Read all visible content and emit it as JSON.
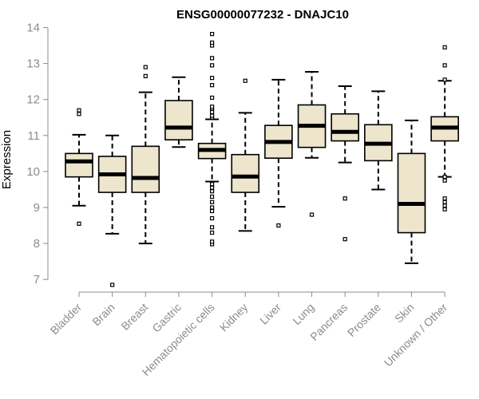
{
  "chart_data": {
    "type": "boxplot",
    "title": "ENSG00000077232 - DNAJC10",
    "xlabel": "",
    "ylabel": "Expression",
    "ylim": [
      6.8,
      14.1
    ],
    "yticks": [
      7,
      8,
      9,
      10,
      11,
      12,
      13,
      14
    ],
    "grid": false,
    "colors": {
      "box_fill": "#ede5cc",
      "box_stroke": "#000000",
      "axis": "#8c8c8c",
      "tick_text": "#8c8c8c",
      "title": "#000000"
    },
    "categories": [
      "Bladder",
      "Brain",
      "Breast",
      "Gastric",
      "Hematopoietic cells",
      "Kidney",
      "Liver",
      "Lung",
      "Pancreas",
      "Prostate",
      "Skin",
      "Unknown / Other"
    ],
    "boxes": [
      {
        "category": "Bladder",
        "whisker_low": 9.05,
        "q1": 9.85,
        "median": 10.28,
        "q3": 10.5,
        "whisker_high": 11.02,
        "outliers": [
          8.55,
          11.6,
          11.7
        ]
      },
      {
        "category": "Brain",
        "whisker_low": 8.27,
        "q1": 9.42,
        "median": 9.92,
        "q3": 10.42,
        "whisker_high": 11.0,
        "outliers": [
          6.85
        ]
      },
      {
        "category": "Breast",
        "whisker_low": 8.0,
        "q1": 9.42,
        "median": 9.82,
        "q3": 10.7,
        "whisker_high": 12.2,
        "outliers": [
          12.65,
          12.9
        ]
      },
      {
        "category": "Gastric",
        "whisker_low": 10.68,
        "q1": 10.88,
        "median": 11.22,
        "q3": 11.97,
        "whisker_high": 12.62,
        "outliers": []
      },
      {
        "category": "Hematopoietic cells",
        "whisker_low": 9.72,
        "q1": 10.36,
        "median": 10.6,
        "q3": 10.78,
        "whisker_high": 11.45,
        "outliers": [
          7.98,
          8.05,
          8.3,
          8.45,
          8.7,
          8.9,
          9.0,
          9.15,
          9.3,
          9.45,
          9.55,
          9.65,
          11.5,
          11.55,
          11.65,
          11.75,
          11.8,
          12.05,
          12.4,
          12.6,
          12.95,
          13.15,
          13.5,
          13.58,
          13.82
        ]
      },
      {
        "category": "Kidney",
        "whisker_low": 8.35,
        "q1": 9.42,
        "median": 9.86,
        "q3": 10.47,
        "whisker_high": 11.63,
        "outliers": [
          12.52
        ]
      },
      {
        "category": "Liver",
        "whisker_low": 9.02,
        "q1": 10.37,
        "median": 10.82,
        "q3": 11.28,
        "whisker_high": 12.55,
        "outliers": [
          8.5
        ]
      },
      {
        "category": "Lung",
        "whisker_low": 10.38,
        "q1": 10.67,
        "median": 11.27,
        "q3": 11.85,
        "whisker_high": 12.77,
        "outliers": [
          8.8
        ]
      },
      {
        "category": "Pancreas",
        "whisker_low": 10.25,
        "q1": 10.85,
        "median": 11.1,
        "q3": 11.6,
        "whisker_high": 12.37,
        "outliers": [
          8.12,
          9.25
        ]
      },
      {
        "category": "Prostate",
        "whisker_low": 9.5,
        "q1": 10.3,
        "median": 10.77,
        "q3": 11.3,
        "whisker_high": 12.23,
        "outliers": []
      },
      {
        "category": "Skin",
        "whisker_low": 7.45,
        "q1": 8.3,
        "median": 9.1,
        "q3": 10.5,
        "whisker_high": 11.42,
        "outliers": []
      },
      {
        "category": "Unknown / Other",
        "whisker_low": 9.85,
        "q1": 10.85,
        "median": 11.22,
        "q3": 11.52,
        "whisker_high": 12.52,
        "outliers": [
          8.95,
          9.05,
          9.15,
          9.25,
          9.75,
          9.85,
          12.55,
          12.95,
          13.45
        ]
      }
    ]
  }
}
